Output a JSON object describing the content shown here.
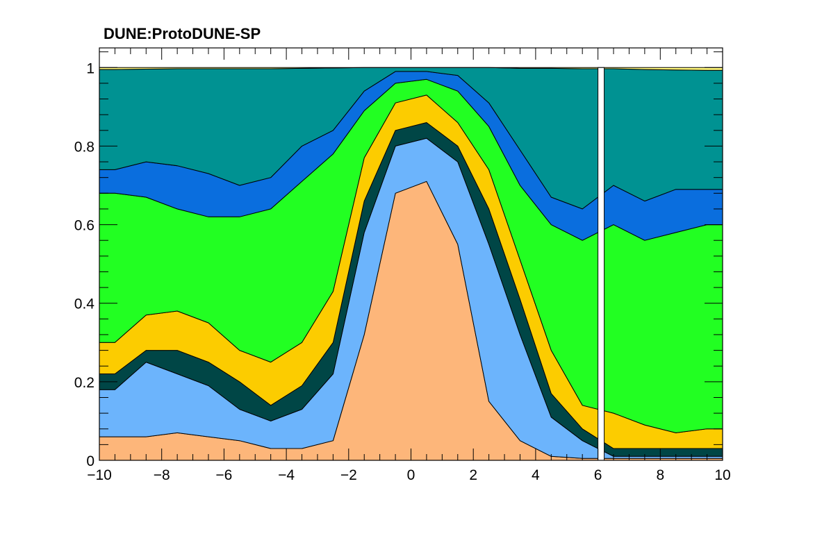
{
  "chart_data": {
    "type": "area",
    "stacked": true,
    "normalized": true,
    "title": "DUNE:ProtoDUNE-SP",
    "xlabel": "",
    "ylabel": "",
    "xlim": [
      -10,
      10
    ],
    "ylim": [
      0,
      1.05
    ],
    "x_ticks": [
      -10,
      -8,
      -6,
      -4,
      -2,
      0,
      2,
      4,
      6,
      8,
      10
    ],
    "x_tick_labels": [
      "−10",
      "−8",
      "−6",
      "−4",
      "−2",
      "0",
      "2",
      "4",
      "6",
      "8",
      "10"
    ],
    "y_ticks": [
      0,
      0.2,
      0.4,
      0.6,
      0.8,
      1
    ],
    "y_tick_labels": [
      "0",
      "0.2",
      "0.4",
      "0.6",
      "0.8",
      "1"
    ],
    "gap_range": [
      6.0,
      6.2
    ],
    "colors": [
      "#fdb67a",
      "#6cb4fc",
      "#004646",
      "#fccc00",
      "#22ff22",
      "#0a6ede",
      "#009292",
      "#fff77a"
    ],
    "x": [
      -9.5,
      -8.5,
      -7.5,
      -6.5,
      -5.5,
      -4.5,
      -3.5,
      -2.5,
      -1.5,
      -0.5,
      0.5,
      1.5,
      2.5,
      3.5,
      4.5,
      5.5,
      6.5,
      7.5,
      8.5,
      9.5
    ],
    "cumulative_boundaries": [
      [
        0.06,
        0.06,
        0.07,
        0.06,
        0.05,
        0.03,
        0.03,
        0.05,
        0.32,
        0.68,
        0.71,
        0.55,
        0.15,
        0.05,
        0.01,
        0.005,
        0.005,
        0.005,
        0.005,
        0.005
      ],
      [
        0.18,
        0.25,
        0.22,
        0.19,
        0.13,
        0.1,
        0.13,
        0.22,
        0.58,
        0.8,
        0.82,
        0.76,
        0.55,
        0.32,
        0.11,
        0.05,
        0.01,
        0.01,
        0.01,
        0.01
      ],
      [
        0.22,
        0.28,
        0.28,
        0.25,
        0.2,
        0.14,
        0.19,
        0.3,
        0.66,
        0.84,
        0.86,
        0.8,
        0.64,
        0.41,
        0.17,
        0.08,
        0.03,
        0.03,
        0.03,
        0.03
      ],
      [
        0.3,
        0.37,
        0.38,
        0.35,
        0.28,
        0.25,
        0.3,
        0.43,
        0.77,
        0.91,
        0.93,
        0.86,
        0.74,
        0.51,
        0.28,
        0.14,
        0.12,
        0.09,
        0.07,
        0.08
      ],
      [
        0.68,
        0.67,
        0.64,
        0.62,
        0.62,
        0.64,
        0.71,
        0.78,
        0.89,
        0.96,
        0.97,
        0.94,
        0.85,
        0.7,
        0.6,
        0.56,
        0.6,
        0.56,
        0.58,
        0.6
      ],
      [
        0.74,
        0.76,
        0.75,
        0.73,
        0.7,
        0.72,
        0.8,
        0.84,
        0.94,
        0.99,
        0.99,
        0.98,
        0.91,
        0.79,
        0.67,
        0.64,
        0.7,
        0.66,
        0.69,
        0.69
      ],
      [
        0.995,
        0.996,
        0.997,
        0.997,
        0.997,
        0.997,
        0.998,
        0.999,
        1.0,
        1.0,
        1.0,
        1.0,
        1.0,
        0.998,
        0.998,
        0.997,
        0.997,
        0.995,
        0.994,
        0.993
      ],
      [
        1,
        1,
        1,
        1,
        1,
        1,
        1,
        1,
        1,
        1,
        1,
        1,
        1,
        1,
        1,
        1,
        1,
        1,
        1,
        1
      ]
    ]
  }
}
